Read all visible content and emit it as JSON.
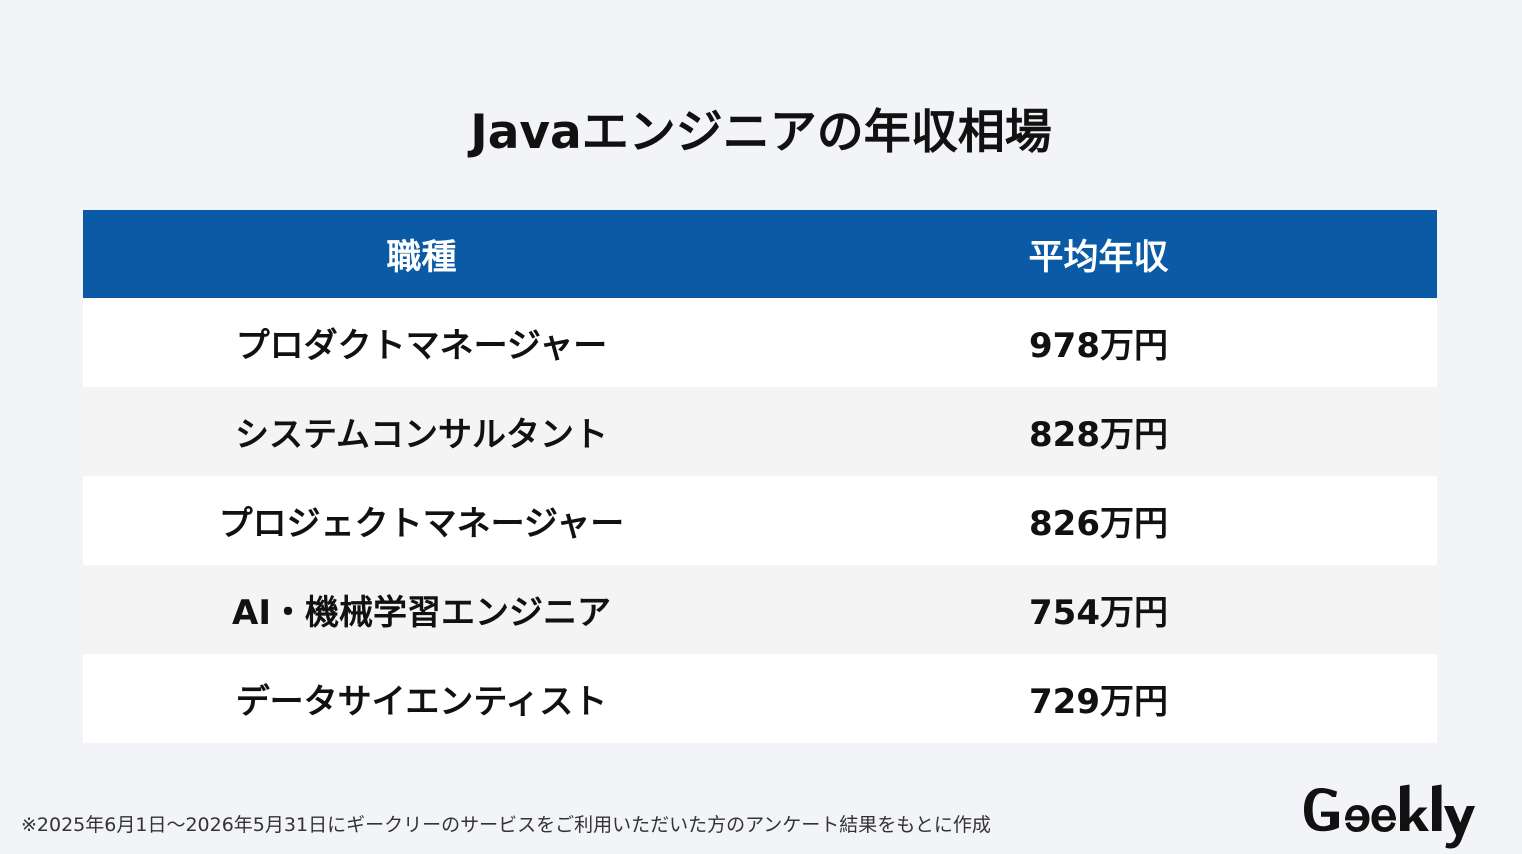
{
  "title": "Javaエンジニアの年収相場",
  "table": {
    "headers": {
      "job": "職種",
      "salary": "平均年収"
    },
    "rows": [
      {
        "job": "プロダクトマネージャー",
        "salary": "978万円"
      },
      {
        "job": "システムコンサルタント",
        "salary": "828万円"
      },
      {
        "job": "プロジェクトマネージャー",
        "salary": "826万円"
      },
      {
        "job": "AI・機械学習エンジニア",
        "salary": "754万円"
      },
      {
        "job": "データサイエンティスト",
        "salary": "729万円"
      }
    ]
  },
  "footnote": "※2025年6月1日〜2026年5月31日にギークリーのサービスをご利用いただいた方のアンケート結果をもとに作成",
  "brand": {
    "logo_text": "Geekly"
  },
  "colors": {
    "background": "#f2f4f8",
    "header_bg": "#0b5aa5",
    "header_text": "#ffffff",
    "row_odd": "#ffffff",
    "row_even": "#f4f4f4",
    "text": "#111111"
  }
}
